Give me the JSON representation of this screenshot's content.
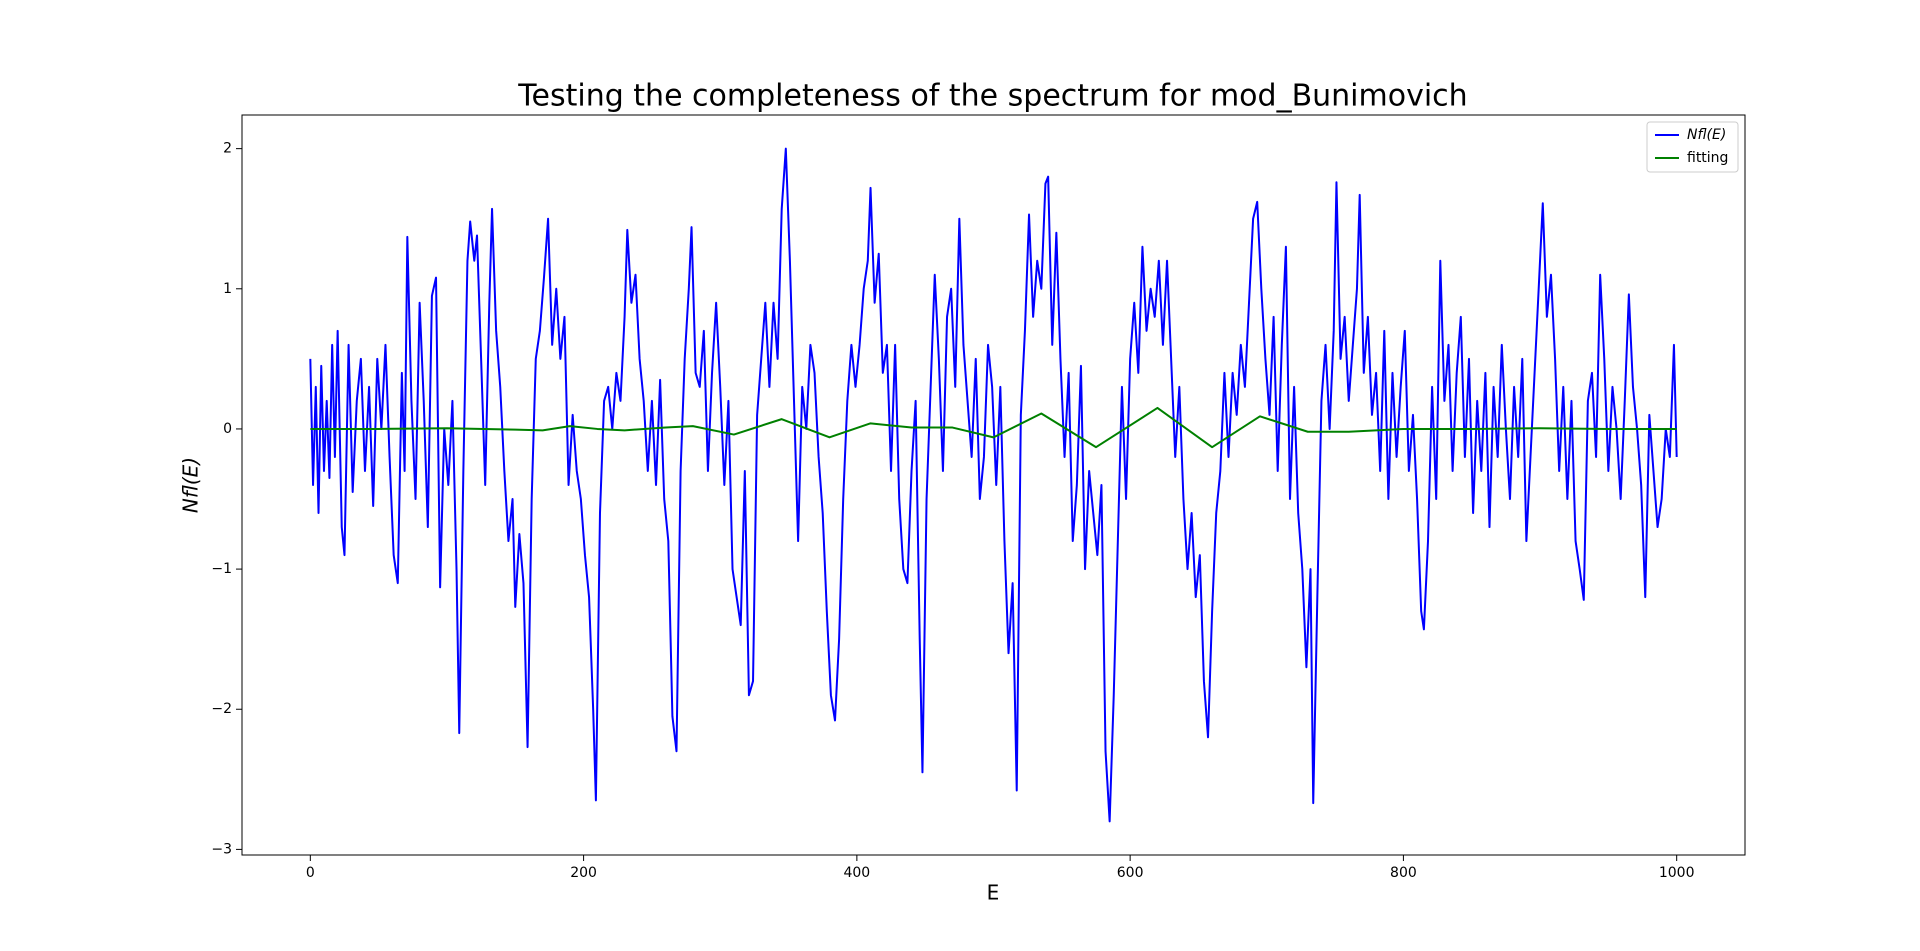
{
  "chart_data": {
    "type": "line",
    "title": "Testing the completeness of the spectrum for mod_Bunimovich",
    "xlabel": "E",
    "ylabel": "Nfl(E)",
    "xlim": [
      -50,
      1050
    ],
    "ylim": [
      -3.04,
      2.24
    ],
    "xticks": [
      0,
      200,
      400,
      600,
      800,
      1000
    ],
    "yticks": [
      {
        "value": -3,
        "label": "−3"
      },
      {
        "value": -2,
        "label": "−2"
      },
      {
        "value": -1,
        "label": "−1"
      },
      0,
      1,
      2
    ],
    "legend": "upper right",
    "series": [
      {
        "name": "Nfl(E)",
        "color": "#0000ff",
        "x": [
          0,
          2,
          4,
          6,
          8,
          10,
          12,
          14,
          16,
          18,
          20,
          23,
          25,
          28,
          31,
          34,
          37,
          40,
          43,
          46,
          49,
          52,
          55,
          58,
          61,
          64,
          67,
          69,
          71,
          74,
          77,
          80,
          83,
          86,
          89,
          92,
          95,
          98,
          101,
          104,
          107,
          109,
          112,
          115,
          117,
          120,
          122,
          125,
          128,
          131,
          133,
          136,
          139,
          142,
          145,
          148,
          150,
          153,
          156,
          159,
          162,
          165,
          168,
          171,
          174,
          177,
          180,
          183,
          186,
          189,
          192,
          195,
          198,
          201,
          204,
          207,
          209,
          212,
          215,
          218,
          221,
          224,
          227,
          230,
          232,
          235,
          238,
          241,
          244,
          247,
          250,
          253,
          256,
          259,
          262,
          265,
          268,
          271,
          274,
          277,
          279,
          282,
          285,
          288,
          291,
          294,
          297,
          300,
          303,
          306,
          309,
          312,
          315,
          318,
          321,
          324,
          327,
          330,
          333,
          336,
          339,
          342,
          345,
          348,
          351,
          354,
          357,
          360,
          363,
          366,
          369,
          372,
          375,
          378,
          381,
          384,
          387,
          390,
          393,
          396,
          399,
          402,
          405,
          408,
          410,
          413,
          416,
          419,
          422,
          425,
          428,
          431,
          434,
          437,
          440,
          443,
          446,
          448,
          451,
          454,
          457,
          460,
          463,
          466,
          469,
          472,
          475,
          478,
          481,
          484,
          487,
          490,
          493,
          496,
          499,
          502,
          505,
          508,
          511,
          514,
          517,
          520,
          523,
          526,
          529,
          532,
          535,
          538,
          540,
          543,
          546,
          549,
          552,
          555,
          558,
          561,
          564,
          567,
          570,
          573,
          576,
          579,
          582,
          585,
          588,
          591,
          594,
          597,
          600,
          603,
          606,
          609,
          612,
          615,
          618,
          621,
          624,
          627,
          630,
          633,
          636,
          639,
          642,
          645,
          648,
          651,
          654,
          657,
          660,
          663,
          666,
          669,
          672,
          675,
          678,
          681,
          684,
          687,
          690,
          693,
          696,
          699,
          702,
          705,
          708,
          711,
          714,
          717,
          720,
          723,
          726,
          729,
          732,
          734,
          737,
          740,
          743,
          746,
          749,
          751,
          754,
          757,
          760,
          763,
          766,
          768,
          771,
          774,
          777,
          780,
          783,
          786,
          789,
          792,
          795,
          798,
          801,
          804,
          807,
          810,
          813,
          815,
          818,
          821,
          824,
          827,
          830,
          833,
          836,
          839,
          842,
          845,
          848,
          851,
          854,
          857,
          860,
          863,
          866,
          869,
          872,
          875,
          878,
          881,
          884,
          887,
          890,
          893,
          896,
          899,
          902,
          905,
          908,
          911,
          914,
          917,
          920,
          923,
          926,
          929,
          932,
          935,
          938,
          941,
          944,
          947,
          950,
          953,
          956,
          959,
          962,
          965,
          968,
          971,
          974,
          977,
          980,
          983,
          986,
          989,
          992,
          995,
          998,
          1000
        ],
        "values": [
          0.5,
          -0.4,
          0.3,
          -0.6,
          0.45,
          -0.3,
          0.2,
          -0.35,
          0.6,
          -0.2,
          0.7,
          -0.7,
          -0.9,
          0.6,
          -0.45,
          0.2,
          0.5,
          -0.3,
          0.3,
          -0.55,
          0.5,
          0.0,
          0.6,
          -0.2,
          -0.9,
          -1.1,
          0.4,
          -0.3,
          1.37,
          0.2,
          -0.5,
          0.9,
          0.2,
          -0.7,
          0.95,
          1.08,
          -1.13,
          0.0,
          -0.4,
          0.2,
          -1.0,
          -2.17,
          -0.3,
          1.2,
          1.48,
          1.2,
          1.38,
          0.5,
          -0.4,
          0.9,
          1.57,
          0.7,
          0.3,
          -0.3,
          -0.8,
          -0.5,
          -1.27,
          -0.75,
          -1.1,
          -2.27,
          -0.5,
          0.5,
          0.7,
          1.08,
          1.5,
          0.6,
          1.0,
          0.5,
          0.8,
          -0.4,
          0.1,
          -0.3,
          -0.5,
          -0.9,
          -1.2,
          -2.0,
          -2.65,
          -0.6,
          0.2,
          0.3,
          0.0,
          0.4,
          0.2,
          0.8,
          1.42,
          0.9,
          1.1,
          0.5,
          0.2,
          -0.3,
          0.2,
          -0.4,
          0.35,
          -0.5,
          -0.8,
          -2.05,
          -2.3,
          -0.3,
          0.5,
          1.0,
          1.44,
          0.4,
          0.3,
          0.7,
          -0.3,
          0.4,
          0.9,
          0.3,
          -0.4,
          0.2,
          -1.0,
          -1.2,
          -1.4,
          -0.3,
          -1.9,
          -1.8,
          0.1,
          0.5,
          0.9,
          0.3,
          0.9,
          0.5,
          1.57,
          2.0,
          1.2,
          0.2,
          -0.8,
          0.3,
          0.0,
          0.6,
          0.4,
          -0.2,
          -0.6,
          -1.3,
          -1.9,
          -2.08,
          -1.5,
          -0.5,
          0.2,
          0.6,
          0.3,
          0.6,
          1.0,
          1.2,
          1.72,
          0.9,
          1.25,
          0.4,
          0.6,
          -0.3,
          0.6,
          -0.5,
          -1.0,
          -1.1,
          -0.3,
          0.2,
          -1.5,
          -2.45,
          -0.5,
          0.3,
          1.1,
          0.5,
          -0.3,
          0.8,
          1.0,
          0.3,
          1.5,
          0.6,
          0.2,
          -0.2,
          0.5,
          -0.5,
          -0.2,
          0.6,
          0.3,
          -0.4,
          0.3,
          -0.8,
          -1.6,
          -1.1,
          -2.58,
          0.1,
          0.7,
          1.53,
          0.8,
          1.2,
          1.0,
          1.75,
          1.8,
          0.6,
          1.4,
          0.5,
          -0.2,
          0.4,
          -0.8,
          -0.4,
          0.45,
          -1.0,
          -0.3,
          -0.6,
          -0.9,
          -0.4,
          -2.3,
          -2.8,
          -1.9,
          -0.8,
          0.3,
          -0.5,
          0.5,
          0.9,
          0.4,
          1.3,
          0.7,
          1.0,
          0.8,
          1.2,
          0.6,
          1.2,
          0.5,
          -0.2,
          0.3,
          -0.5,
          -1.0,
          -0.6,
          -1.2,
          -0.9,
          -1.8,
          -2.2,
          -1.3,
          -0.6,
          -0.3,
          0.4,
          -0.2,
          0.4,
          0.1,
          0.6,
          0.3,
          0.9,
          1.5,
          1.62,
          1.0,
          0.5,
          0.1,
          0.8,
          -0.3,
          0.6,
          1.3,
          -0.5,
          0.3,
          -0.6,
          -1.0,
          -1.7,
          -1.0,
          -2.67,
          -1.2,
          0.2,
          0.6,
          0.0,
          0.7,
          1.76,
          0.5,
          0.8,
          0.2,
          0.6,
          1.0,
          1.67,
          0.4,
          0.8,
          0.1,
          0.4,
          -0.3,
          0.7,
          -0.5,
          0.4,
          -0.2,
          0.3,
          0.7,
          -0.3,
          0.1,
          -0.5,
          -1.3,
          -1.43,
          -0.8,
          0.3,
          -0.5,
          1.2,
          0.2,
          0.6,
          -0.3,
          0.4,
          0.8,
          -0.2,
          0.5,
          -0.6,
          0.2,
          -0.3,
          0.4,
          -0.7,
          0.3,
          -0.2,
          0.6,
          0.0,
          -0.5,
          0.3,
          -0.2,
          0.5,
          -0.8,
          -0.2,
          0.4,
          1.0,
          1.61,
          0.8,
          1.1,
          0.5,
          -0.3,
          0.3,
          -0.5,
          0.2,
          -0.8,
          -1.0,
          -1.22,
          0.2,
          0.4,
          -0.2,
          1.1,
          0.5,
          -0.3,
          0.3,
          0.0,
          -0.5,
          0.2,
          0.96,
          0.3,
          0.0,
          -0.4,
          -1.2,
          0.1,
          -0.3,
          -0.7,
          -0.5,
          0.0,
          -0.2,
          0.6,
          -0.2
        ]
      },
      {
        "name": "fitting",
        "color": "#008000",
        "x": [
          0,
          50,
          100,
          150,
          170,
          190,
          210,
          230,
          260,
          280,
          310,
          345,
          380,
          410,
          440,
          470,
          500,
          535,
          575,
          620,
          660,
          695,
          730,
          760,
          800,
          850,
          900,
          950,
          1000
        ],
        "values": [
          0,
          0,
          0.005,
          -0.005,
          -0.01,
          0.02,
          0.0,
          -0.01,
          0.01,
          0.02,
          -0.04,
          0.07,
          -0.06,
          0.04,
          0.01,
          0.01,
          -0.06,
          0.11,
          -0.13,
          0.15,
          -0.13,
          0.09,
          -0.02,
          -0.02,
          0.0,
          0.0,
          0.005,
          0.0,
          0.0
        ]
      }
    ]
  }
}
